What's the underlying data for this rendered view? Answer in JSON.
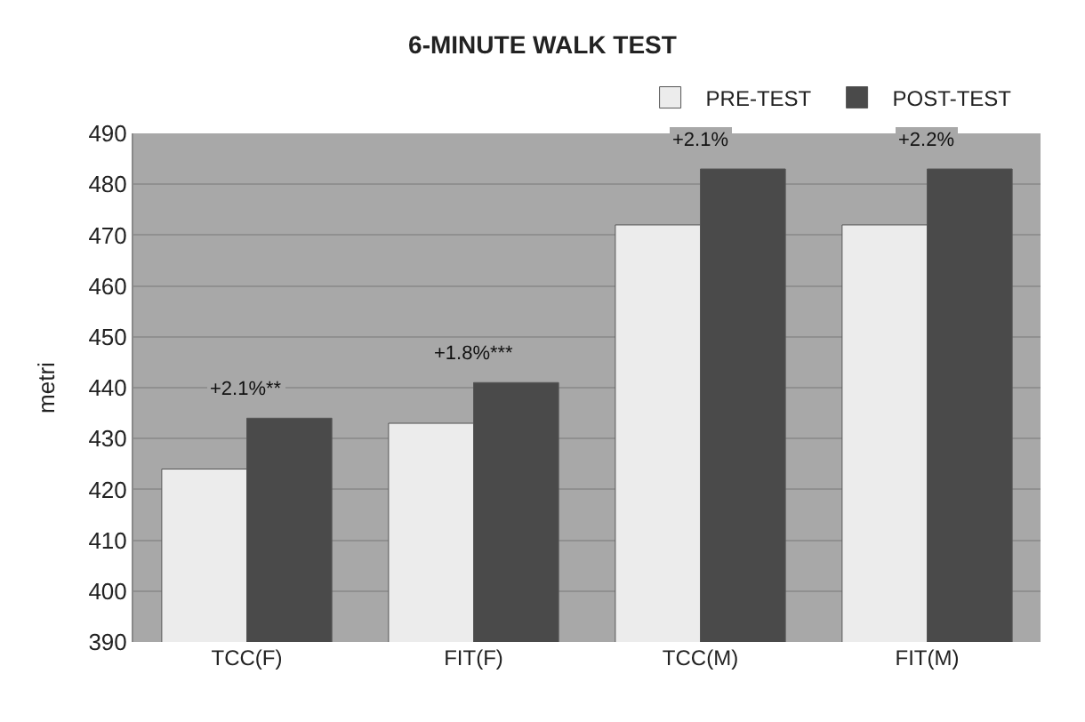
{
  "chart_data": {
    "type": "bar",
    "title": "6-MINUTE WALK TEST",
    "ylabel": "metri",
    "categories": [
      "TCC(F)",
      "FIT(F)",
      "TCC(M)",
      "FIT(M)"
    ],
    "series": [
      {
        "name": "PRE-TEST",
        "color": "#ececec",
        "values": [
          424,
          433,
          472,
          472
        ]
      },
      {
        "name": "POST-TEST",
        "color": "#4a4a4a",
        "values": [
          434,
          441,
          483,
          483
        ]
      }
    ],
    "ylim": [
      390,
      490
    ],
    "yticks": [
      390,
      400,
      410,
      420,
      430,
      440,
      450,
      460,
      470,
      480,
      490
    ],
    "grid": "y",
    "legend": "top",
    "annotations": [
      "+2.1%**",
      "+1.8%***",
      "+2.1%",
      "+2.2%"
    ]
  }
}
